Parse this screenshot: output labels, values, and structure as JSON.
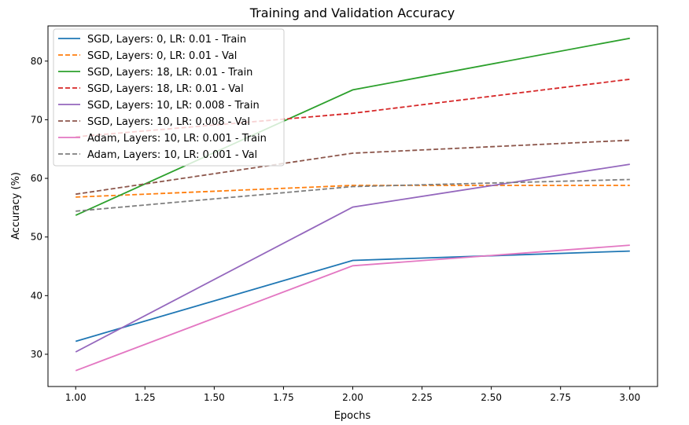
{
  "chart_data": {
    "type": "line",
    "title": "Training and Validation Accuracy",
    "xlabel": "Epochs",
    "ylabel": "Accuracy (%)",
    "xlim": [
      0.9,
      3.1
    ],
    "ylim": [
      24.5,
      86.0
    ],
    "xticks": [
      1.0,
      1.25,
      1.5,
      1.75,
      2.0,
      2.25,
      2.5,
      2.75,
      3.0
    ],
    "xtick_labels": [
      "1.00",
      "1.25",
      "1.50",
      "1.75",
      "2.00",
      "2.25",
      "2.50",
      "2.75",
      "3.00"
    ],
    "yticks": [
      30,
      40,
      50,
      60,
      70,
      80
    ],
    "ytick_labels": [
      "30",
      "40",
      "50",
      "60",
      "70",
      "80"
    ],
    "grid": false,
    "legend_position": "top-left",
    "x": [
      1,
      2,
      3
    ],
    "series": [
      {
        "name": "SGD, Layers: 0, LR: 0.01 - Train",
        "values": [
          32.2,
          46.0,
          47.6
        ],
        "color": "#1f77b4",
        "dashed": false
      },
      {
        "name": "SGD, Layers: 0, LR: 0.01 - Val",
        "values": [
          56.8,
          58.8,
          58.8
        ],
        "color": "#ff7f0e",
        "dashed": true
      },
      {
        "name": "SGD, Layers: 18, LR: 0.01 - Train",
        "values": [
          53.7,
          75.1,
          83.9
        ],
        "color": "#2ca02c",
        "dashed": false
      },
      {
        "name": "SGD, Layers: 18, LR: 0.01 - Val",
        "values": [
          67.1,
          71.1,
          76.9
        ],
        "color": "#d62728",
        "dashed": true
      },
      {
        "name": "SGD, Layers: 10, LR: 0.008 - Train",
        "values": [
          30.4,
          55.1,
          62.4
        ],
        "color": "#9467bd",
        "dashed": false
      },
      {
        "name": "SGD, Layers: 10, LR: 0.008 - Val",
        "values": [
          57.3,
          64.3,
          66.5
        ],
        "color": "#8c564b",
        "dashed": true
      },
      {
        "name": "Adam, Layers: 10, LR: 0.001 - Train",
        "values": [
          27.2,
          45.1,
          48.6
        ],
        "color": "#e377c2",
        "dashed": false
      },
      {
        "name": "Adam, Layers: 10, LR: 0.001 - Val",
        "values": [
          54.4,
          58.6,
          59.8
        ],
        "color": "#7f7f7f",
        "dashed": true
      }
    ]
  }
}
